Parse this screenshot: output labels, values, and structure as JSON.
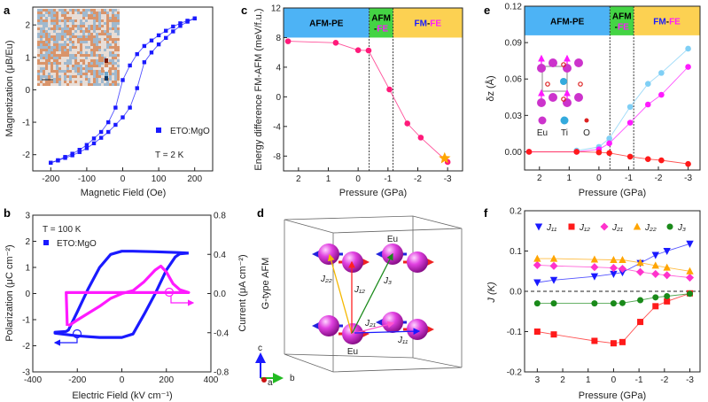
{
  "panels": {
    "a": "a",
    "b": "b",
    "c": "c",
    "d": "d",
    "e": "e",
    "f": "f"
  },
  "chart_data": [
    {
      "panel": "a",
      "type": "line",
      "xlabel": "Magnetic Field (Oe)",
      "ylabel": "Magnetization (μB/Eu)",
      "xlim": [
        -250,
        250
      ],
      "ylim": [
        -2.5,
        2.55
      ],
      "xticks": [
        -200,
        -100,
        0,
        100,
        200
      ],
      "xticklabels": [
        "-200",
        "-100",
        "0",
        "100",
        "200"
      ],
      "yticks": [
        -2,
        -1,
        0,
        1,
        2
      ],
      "yticklabels": [
        "-2",
        "-1",
        "0",
        "1",
        "2"
      ],
      "legend": "ETO:MgO",
      "annotation": "T = 2 K",
      "series": [
        {
          "name": "ETO:MgO descending",
          "color": "#1a1aff",
          "marker": "square",
          "x": [
            200,
            180,
            160,
            140,
            120,
            100,
            80,
            60,
            40,
            20,
            0,
            -20,
            -40,
            -60,
            -80,
            -100,
            -120,
            -140,
            -160,
            -180,
            -200
          ],
          "y": [
            2.2,
            2.13,
            2.05,
            1.95,
            1.82,
            1.68,
            1.52,
            1.35,
            1.1,
            0.75,
            0.3,
            -0.55,
            -1.0,
            -1.3,
            -1.5,
            -1.7,
            -1.85,
            -1.97,
            -2.07,
            -2.17,
            -2.25
          ]
        },
        {
          "name": "ETO:MgO ascending",
          "color": "#1a1aff",
          "marker": "square",
          "x": [
            -200,
            -180,
            -160,
            -140,
            -120,
            -100,
            -80,
            -60,
            -40,
            -20,
            0,
            20,
            40,
            60,
            80,
            100,
            120,
            140,
            160,
            180,
            200
          ],
          "y": [
            -2.25,
            -2.18,
            -2.1,
            -2.02,
            -1.92,
            -1.8,
            -1.65,
            -1.48,
            -1.3,
            -1.08,
            -0.85,
            -0.55,
            0.05,
            0.85,
            1.15,
            1.4,
            1.6,
            1.8,
            1.97,
            2.1,
            2.2
          ]
        }
      ]
    },
    {
      "panel": "b",
      "type": "line",
      "xlabel": "Electric Field (kV cm⁻¹)",
      "ylabel": "Polarization (μC cm⁻²)",
      "y2label": "Current (μA cm⁻²)",
      "xlim": [
        -400,
        400
      ],
      "ylim": [
        -3,
        3
      ],
      "y2lim": [
        -0.8,
        0.8
      ],
      "xticks": [
        -400,
        -200,
        0,
        200,
        400
      ],
      "xticklabels": [
        "-400",
        "-200",
        "0",
        "200",
        "400"
      ],
      "yticks": [
        -3,
        -2,
        -1,
        0,
        1,
        2,
        3
      ],
      "yticklabels": [
        "-3",
        "-2",
        "-1",
        "0",
        "1",
        "2",
        "3"
      ],
      "y2ticks": [
        -0.8,
        -0.4,
        0,
        0.4,
        0.8
      ],
      "y2ticklabels": [
        "-0.8",
        "-0.4",
        "0.0",
        "0.4",
        "0.8"
      ],
      "legend": "ETO:MgO",
      "annotation": "T = 100 K",
      "series": [
        {
          "name": "Polarization",
          "color": "#1a1aff",
          "marker": "none",
          "axis": "left",
          "x": [
            300,
            250,
            150,
            50,
            0,
            -50,
            -100,
            -150,
            -200,
            -240,
            -250,
            -300,
            -300,
            -200,
            -100,
            0,
            50,
            100,
            150,
            200,
            240,
            260,
            300
          ],
          "y": [
            1.55,
            1.57,
            1.6,
            1.62,
            1.62,
            1.5,
            1.0,
            0.2,
            -0.7,
            -1.4,
            -1.45,
            -1.48,
            -1.52,
            -1.62,
            -1.68,
            -1.68,
            -1.55,
            -0.8,
            0.0,
            0.9,
            1.4,
            1.52,
            1.55
          ]
        },
        {
          "name": "Current",
          "color": "#ff1aff",
          "marker": "none",
          "axis": "right",
          "x": [
            -240,
            -200,
            -150,
            -100,
            -50,
            0,
            50,
            100,
            150,
            175,
            200,
            230,
            260,
            300,
            0,
            -250,
            -245
          ],
          "y": [
            -0.33,
            -0.27,
            -0.2,
            -0.13,
            -0.05,
            0,
            0.03,
            0.12,
            0.24,
            0.28,
            0.22,
            0.1,
            0.04,
            0.01,
            0.01,
            0.01,
            -0.33
          ]
        }
      ]
    },
    {
      "panel": "c",
      "type": "line",
      "xlabel": "Pressure (GPa)",
      "ylabel": "Energy difference FM-AFM (meV/f.u.)",
      "xlim": [
        2.5,
        -3.5
      ],
      "ylim": [
        -10,
        12
      ],
      "xticks": [
        2,
        1,
        0,
        -1,
        -2,
        -3
      ],
      "xticklabels": [
        "2",
        "1",
        "0",
        "-1",
        "-2",
        "-3"
      ],
      "yticks": [
        -8,
        -4,
        0,
        4,
        8,
        12
      ],
      "yticklabels": [
        "-8",
        "-4",
        "0",
        "4",
        "8",
        "12"
      ],
      "phase_boundaries": [
        -0.37,
        -1.17
      ],
      "bands": [
        {
          "from": 2.5,
          "to": -0.37,
          "color": "#4db3f5",
          "lines": [
            [
              {
                "text": "AFM-PE",
                "color": "#000000"
              }
            ]
          ]
        },
        {
          "from": -0.37,
          "to": -1.17,
          "color": "#44d444",
          "lines": [
            [
              {
                "text": "AFM",
                "color": "#000000"
              }
            ],
            [
              {
                "text": "-",
                "color": "#000000"
              },
              {
                "text": "FE",
                "color": "#ff1aff"
              }
            ]
          ]
        },
        {
          "from": -1.17,
          "to": -3.5,
          "color": "#fcd152",
          "lines": [
            [
              {
                "text": "FM",
                "color": "#1a1aff"
              },
              {
                "text": "-",
                "color": "#000000"
              },
              {
                "text": "FE",
                "color": "#ff1aff"
              }
            ]
          ]
        }
      ],
      "band_ylim": [
        8,
        12
      ],
      "series": [
        {
          "name": "Energy difference",
          "color": "#ff1a7a",
          "marker": "circle",
          "x": [
            2.35,
            0.75,
            0,
            -0.35,
            -1.05,
            -1.65,
            -2.1,
            -3
          ],
          "y": [
            7.5,
            7.3,
            6.3,
            6.25,
            1.0,
            -3.6,
            -5.5,
            -8.8
          ]
        }
      ],
      "star": {
        "x": -2.9,
        "y": -8.3,
        "color": "#ffa500"
      }
    },
    {
      "panel": "e",
      "type": "line",
      "xlabel": "Pressure (GPa)",
      "ylabel": "δz (Å)",
      "xlim": [
        2.5,
        -3.4
      ],
      "ylim": [
        -0.015,
        0.12
      ],
      "xticks": [
        2,
        1,
        0,
        -1,
        -2,
        -3
      ],
      "xticklabels": [
        "2",
        "1",
        "0",
        "-1",
        "-2",
        "-3"
      ],
      "yticks": [
        0,
        0.03,
        0.06,
        0.09,
        0.12
      ],
      "yticklabels": [
        "0.00",
        "0.03",
        "0.06",
        "0.09",
        "0.12"
      ],
      "phase_boundaries": [
        -0.37,
        -1.17
      ],
      "bands": [
        {
          "from": 2.5,
          "to": -0.37,
          "color": "#4db3f5",
          "lines": [
            [
              {
                "text": "AFM-PE",
                "color": "#000000"
              }
            ]
          ]
        },
        {
          "from": -0.37,
          "to": -1.17,
          "color": "#44d444",
          "lines": [
            [
              {
                "text": "AFM",
                "color": "#000000"
              }
            ],
            [
              {
                "text": "-",
                "color": "#000000"
              },
              {
                "text": "FE",
                "color": "#ff1aff"
              }
            ]
          ]
        },
        {
          "from": -1.17,
          "to": -3.4,
          "color": "#fcd152",
          "lines": [
            [
              {
                "text": "FM",
                "color": "#1a1aff"
              },
              {
                "text": "-",
                "color": "#000000"
              },
              {
                "text": "FE",
                "color": "#ff1aff"
              }
            ]
          ]
        }
      ],
      "band_ylim": [
        0.096,
        0.12
      ],
      "inset_legend": [
        {
          "label": "Eu",
          "color": "#cc33cc"
        },
        {
          "label": "Ti",
          "color": "#33aadd"
        },
        {
          "label": "O",
          "color": "#dd2222"
        }
      ],
      "series": [
        {
          "name": "Ti",
          "color": "#7fcff5",
          "marker": "circle",
          "x": [
            0.75,
            0,
            -0.35,
            -1.05,
            -1.65,
            -2.1,
            -3
          ],
          "y": [
            0.001,
            0.004,
            0.011,
            0.037,
            0.056,
            0.065,
            0.085
          ]
        },
        {
          "name": "Eu",
          "color": "#ff1aff",
          "marker": "circle",
          "x": [
            2.35,
            0.75,
            0,
            -0.35,
            -1.05,
            -1.65,
            -2.1,
            -3
          ],
          "y": [
            0,
            0,
            0.002,
            0.007,
            0.024,
            0.039,
            0.047,
            0.07
          ]
        },
        {
          "name": "O",
          "color": "#ff1a1a",
          "marker": "circle",
          "x": [
            2.35,
            0.75,
            0,
            -0.35,
            -1.05,
            -1.65,
            -2.1,
            -3
          ],
          "y": [
            0,
            0,
            -0.0005,
            -0.001,
            -0.004,
            -0.006,
            -0.007,
            -0.01
          ]
        }
      ]
    },
    {
      "panel": "f",
      "type": "line",
      "xlabel": "Pressure (GPa)",
      "ylabel": "J (K)",
      "xlim": [
        3.5,
        -3.4
      ],
      "ylim": [
        -0.2,
        0.2
      ],
      "xticks": [
        3,
        2,
        1,
        0,
        -1,
        -2,
        -3
      ],
      "xticklabels": [
        "3",
        "2",
        "1",
        "0",
        "-1",
        "-2",
        "-3"
      ],
      "yticks": [
        -0.2,
        -0.1,
        0,
        0.1,
        0.2
      ],
      "yticklabels": [
        "-0.2",
        "-0.1",
        "0.0",
        "0.1",
        "0.2"
      ],
      "zero_line": true,
      "series": [
        {
          "name": "J₁₁",
          "color": "#1a1aff",
          "marker": "tri-down",
          "x": [
            3,
            2.35,
            0.75,
            0,
            -0.35,
            -1.05,
            -1.65,
            -2.1,
            -3
          ],
          "y": [
            0.022,
            0.028,
            0.037,
            0.043,
            0.047,
            0.07,
            0.09,
            0.1,
            0.118
          ]
        },
        {
          "name": "J₁₂",
          "color": "#ff1a1a",
          "marker": "square",
          "x": [
            3,
            2.35,
            0.75,
            0,
            -0.35,
            -1.05,
            -1.65,
            -2.1,
            -3
          ],
          "y": [
            -0.1,
            -0.107,
            -0.123,
            -0.129,
            -0.126,
            -0.076,
            -0.037,
            -0.025,
            -0.005
          ]
        },
        {
          "name": "J₂₁",
          "color": "#ff33cc",
          "marker": "diamond",
          "x": [
            3,
            2.35,
            0.75,
            0,
            -0.35,
            -1.05,
            -1.65,
            -2.1,
            -3
          ],
          "y": [
            0.065,
            0.063,
            0.06,
            0.058,
            0.056,
            0.048,
            0.043,
            0.04,
            0.034
          ]
        },
        {
          "name": "J₂₂",
          "color": "#ffa500",
          "marker": "tri-up",
          "x": [
            3,
            2.35,
            0.75,
            0,
            -0.35,
            -1.05,
            -1.65,
            -2.1,
            -3
          ],
          "y": [
            0.081,
            0.081,
            0.079,
            0.078,
            0.078,
            0.071,
            0.064,
            0.059,
            0.05
          ]
        },
        {
          "name": "J₃",
          "color": "#1a8a1a",
          "marker": "circle",
          "x": [
            3,
            2.35,
            0.75,
            0,
            -0.35,
            -1.05,
            -1.65,
            -2.1,
            -3
          ],
          "y": [
            -0.03,
            -0.03,
            -0.03,
            -0.03,
            -0.029,
            -0.022,
            -0.015,
            -0.012,
            -0.006
          ]
        }
      ]
    }
  ],
  "panel_d": {
    "title": "G-type AFM",
    "atom_top": "Eu",
    "atom_bottom": "Eu",
    "couplings": [
      "J₁₁",
      "J₁₂",
      "J₂₁",
      "J₂₂",
      "J₃"
    ],
    "axes": [
      "c",
      "a",
      "b"
    ]
  }
}
